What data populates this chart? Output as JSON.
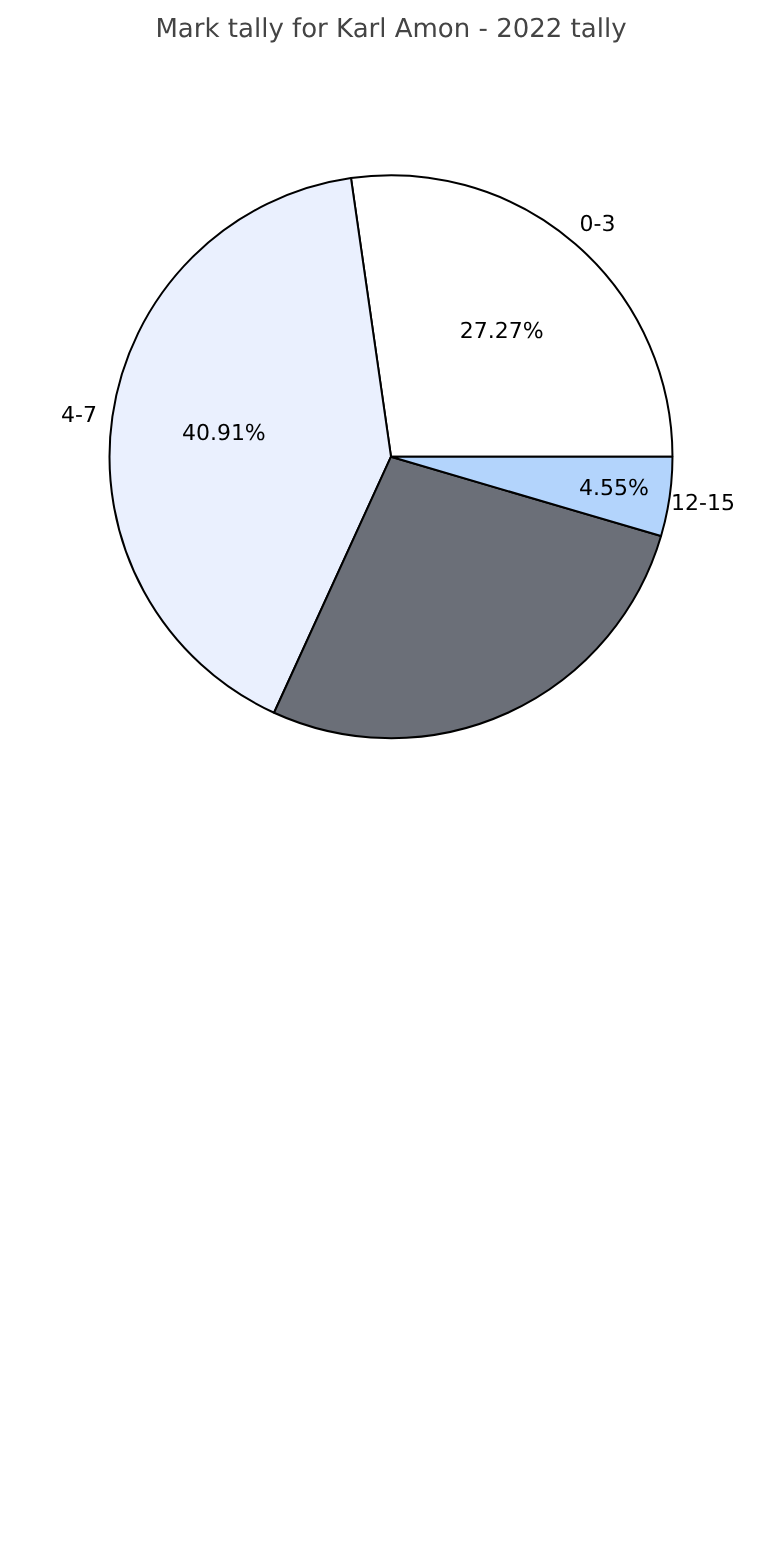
{
  "chart_data": {
    "type": "pie",
    "title": "Mark tally for Karl Amon - 2022 tally",
    "categories": [
      "0-3",
      "4-7",
      null,
      "12-15"
    ],
    "values": [
      27.27,
      40.91,
      27.27,
      4.55
    ],
    "colors": [
      "#ffffff",
      "#eaf0fe",
      "#6b6f78",
      "#b3d4fc"
    ],
    "value_labels": [
      "27.27%",
      "40.91%",
      null,
      "4.55%"
    ]
  }
}
